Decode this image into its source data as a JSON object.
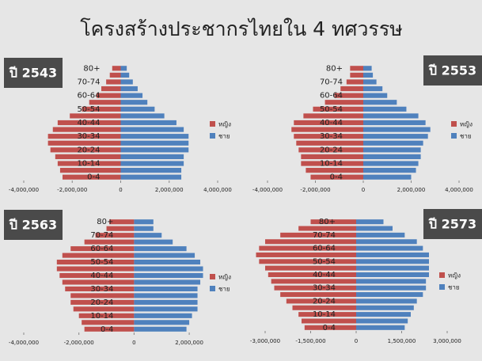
{
  "title": "โครงสร้างประชากรไทยใน 4 ทศวรรษ",
  "chart_data": [
    {
      "type": "pyramid",
      "title": "ปี 2543",
      "categories": [
        "0-4",
        null,
        "10-14",
        null,
        "20-24",
        null,
        "30-34",
        null,
        "40-44",
        null,
        "50-54",
        null,
        "60-64",
        null,
        "70-74",
        null,
        "80+"
      ],
      "series": [
        {
          "name": "หญิง",
          "color": "#c0504d",
          "values": [
            -2400000,
            -2500000,
            -2600000,
            -2700000,
            -2900000,
            -3000000,
            -3000000,
            -2800000,
            -2600000,
            -2100000,
            -1600000,
            -1300000,
            -1000000,
            -800000,
            -600000,
            -450000,
            -350000
          ]
        },
        {
          "name": "ชาย",
          "color": "#4f81bd",
          "values": [
            2500000,
            2500000,
            2600000,
            2600000,
            2800000,
            2800000,
            2800000,
            2600000,
            2300000,
            1800000,
            1400000,
            1100000,
            900000,
            700000,
            500000,
            350000,
            250000
          ]
        }
      ],
      "xlim": [
        -4000000,
        4000000
      ],
      "xticks": [
        {
          "value": -4000000,
          "label": "-4,000,000"
        },
        {
          "value": -2000000,
          "label": "-2,000,000"
        },
        0,
        {
          "value": 2000000,
          "label": "2,000,000"
        },
        {
          "value": 4000000,
          "label": "4,000,000"
        }
      ]
    },
    {
      "type": "pyramid",
      "title": "ปี 2553",
      "categories": [
        "0-4",
        null,
        "10-14",
        null,
        "20-24",
        null,
        "30-34",
        null,
        "40-44",
        null,
        "50-54",
        null,
        "60-64",
        null,
        "70-74",
        null,
        "80+"
      ],
      "series": [
        {
          "name": "หญิง",
          "color": "#c0504d",
          "values": [
            -2200000,
            -2400000,
            -2600000,
            -2600000,
            -2700000,
            -2800000,
            -2900000,
            -3000000,
            -2900000,
            -2500000,
            -2100000,
            -1600000,
            -1200000,
            -950000,
            -700000,
            -550000,
            -550000
          ]
        },
        {
          "name": "ชาย",
          "color": "#4f81bd",
          "values": [
            2000000,
            2200000,
            2300000,
            2400000,
            2400000,
            2500000,
            2700000,
            2800000,
            2600000,
            2300000,
            1800000,
            1400000,
            1000000,
            800000,
            550000,
            400000,
            350000
          ]
        }
      ],
      "xlim": [
        -4000000,
        4000000
      ],
      "xticks": [
        {
          "value": -4000000,
          "label": "-4,000,000"
        },
        {
          "value": -2000000,
          "label": "-2,000,000"
        },
        0,
        {
          "value": 2000000,
          "label": "2,000,000"
        },
        {
          "value": 4000000,
          "label": "4,000,000"
        }
      ]
    },
    {
      "type": "pyramid",
      "title": "ปี 2563",
      "categories": [
        "0-4",
        null,
        "10-14",
        null,
        "20-24",
        null,
        "30-34",
        null,
        "40-44",
        null,
        "50-54",
        null,
        "60-64",
        null,
        "70-74",
        null,
        "80+"
      ],
      "series": [
        {
          "name": "หญิง",
          "color": "#c0504d",
          "values": [
            -1800000,
            -1900000,
            -2000000,
            -2200000,
            -2300000,
            -2300000,
            -2500000,
            -2600000,
            -2700000,
            -2800000,
            -2800000,
            -2600000,
            -2300000,
            -1800000,
            -1400000,
            -1000000,
            -900000
          ]
        },
        {
          "name": "ชาย",
          "color": "#4f81bd",
          "values": [
            1900000,
            2000000,
            2100000,
            2300000,
            2300000,
            2300000,
            2300000,
            2400000,
            2500000,
            2500000,
            2400000,
            2200000,
            1900000,
            1400000,
            1000000,
            700000,
            700000
          ]
        }
      ],
      "xlim": [
        -4000000,
        2600000
      ],
      "xticks": [
        {
          "value": -4000000,
          "label": "-4,000,000"
        },
        {
          "value": -2000000,
          "label": "-2,000,000"
        },
        0,
        {
          "value": 2000000,
          "label": "2,000,000"
        }
      ]
    },
    {
      "type": "pyramid",
      "title": "ปี 2573",
      "categories": [
        "0-4",
        null,
        "10-14",
        null,
        "20-24",
        null,
        "30-34",
        null,
        "40-44",
        null,
        "50-54",
        null,
        "60-64",
        null,
        "70-74",
        null,
        "80+"
      ],
      "series": [
        {
          "name": "หญิง",
          "color": "#c0504d",
          "values": [
            -1700000,
            -1800000,
            -1900000,
            -2100000,
            -2300000,
            -2500000,
            -2700000,
            -2800000,
            -2900000,
            -3000000,
            -3200000,
            -3300000,
            -3200000,
            -3000000,
            -2500000,
            -1900000,
            -1500000
          ]
        },
        {
          "name": "ชาย",
          "color": "#4f81bd",
          "values": [
            1600000,
            1700000,
            1800000,
            1900000,
            2000000,
            2200000,
            2300000,
            2300000,
            2400000,
            2400000,
            2400000,
            2400000,
            2200000,
            2000000,
            1600000,
            1200000,
            900000
          ]
        }
      ],
      "xlim": [
        -3000000,
        3000000
      ],
      "xticks": [
        {
          "value": -3000000,
          "label": "-3,000,000"
        },
        {
          "value": -1500000,
          "label": "-1,500,000"
        },
        0,
        {
          "value": 1500000,
          "label": "1,500,000"
        },
        {
          "value": 3000000,
          "label": "3,000,000"
        }
      ]
    }
  ]
}
